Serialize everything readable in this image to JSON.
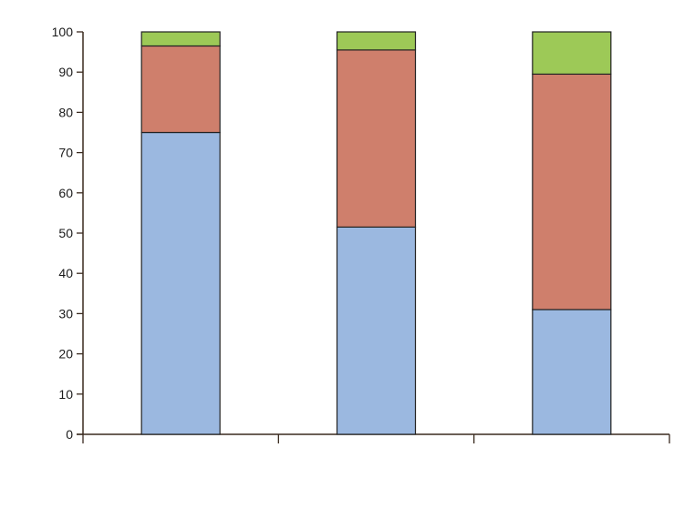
{
  "chart_data": {
    "type": "bar",
    "stacked": true,
    "categories": [
      "",
      "",
      ""
    ],
    "series": [
      {
        "color": "#9bb8e0",
        "values": [
          75,
          51.5,
          31
        ]
      },
      {
        "color": "#cf7f6c",
        "values": [
          21.5,
          44,
          58.5
        ]
      },
      {
        "color": "#9dc957",
        "values": [
          3.5,
          4.5,
          10.5
        ]
      }
    ],
    "title": "",
    "xlabel": "",
    "ylabel": "",
    "ylim": [
      0,
      100
    ],
    "yticks": [
      "0",
      "10",
      "20",
      "30",
      "40",
      "50",
      "60",
      "70",
      "80",
      "90",
      "100"
    ],
    "grid": false,
    "legend": "none"
  }
}
